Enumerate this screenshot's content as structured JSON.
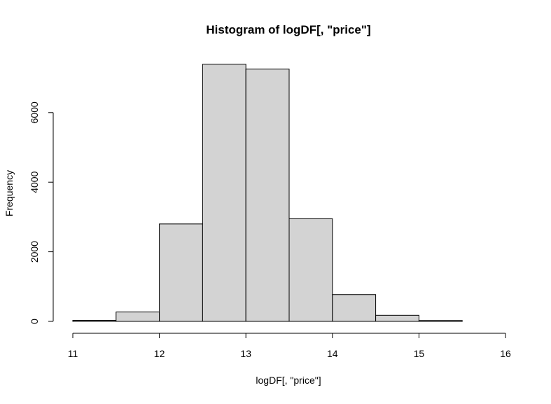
{
  "chart_data": {
    "type": "bar",
    "title": "Histogram of logDF[, \"price\"]",
    "xlabel": "logDF[, \"price\"]",
    "ylabel": "Frequency",
    "bin_edges": [
      11,
      11.5,
      12,
      12.5,
      13,
      13.5,
      14,
      14.5,
      15,
      15.5,
      16
    ],
    "values": [
      30,
      270,
      2800,
      7390,
      7250,
      2950,
      770,
      175,
      25,
      0
    ],
    "xlim": [
      11,
      16
    ],
    "ylim": [
      0,
      7400
    ],
    "x_ticks": [
      "11",
      "12",
      "13",
      "14",
      "15",
      "16"
    ],
    "y_ticks": [
      "0",
      "2000",
      "4000",
      "6000"
    ],
    "grid": false,
    "legend": "none",
    "colors": {
      "bar_fill": "#d3d3d3",
      "bar_stroke": "#000000",
      "axis": "#000000"
    }
  }
}
